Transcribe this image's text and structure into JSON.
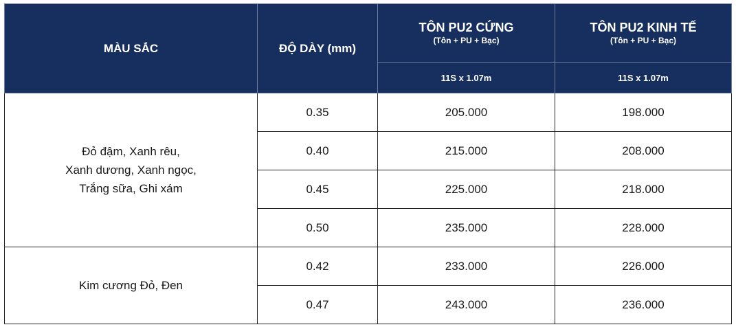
{
  "header": {
    "color_label": "MÀU SẮC",
    "thickness_label": "ĐỘ DÀY (mm)",
    "products": [
      {
        "name": "TÔN PU2 CỨNG",
        "composition": "(Tôn + PU + Bạc)",
        "dimension": "11S x 1.07m"
      },
      {
        "name": "TÔN PU2 KINH TẾ",
        "composition": "(Tôn + PU + Bạc)",
        "dimension": "11S x 1.07m"
      }
    ]
  },
  "groups": [
    {
      "colors": [
        "Đỏ đậm, Xanh rêu,",
        "Xanh dương, Xanh ngọc,",
        "Trắng sữa, Ghi xám"
      ],
      "rows": [
        {
          "thickness": "0.35",
          "price_cung": "205.000",
          "price_kinh_te": "198.000"
        },
        {
          "thickness": "0.40",
          "price_cung": "215.000",
          "price_kinh_te": "208.000"
        },
        {
          "thickness": "0.45",
          "price_cung": "225.000",
          "price_kinh_te": "218.000"
        },
        {
          "thickness": "0.50",
          "price_cung": "235.000",
          "price_kinh_te": "228.000"
        }
      ]
    },
    {
      "colors": [
        "Kim cương Đỏ, Đen"
      ],
      "rows": [
        {
          "thickness": "0.42",
          "price_cung": "233.000",
          "price_kinh_te": "226.000"
        },
        {
          "thickness": "0.47",
          "price_cung": "243.000",
          "price_kinh_te": "236.000"
        }
      ]
    }
  ]
}
